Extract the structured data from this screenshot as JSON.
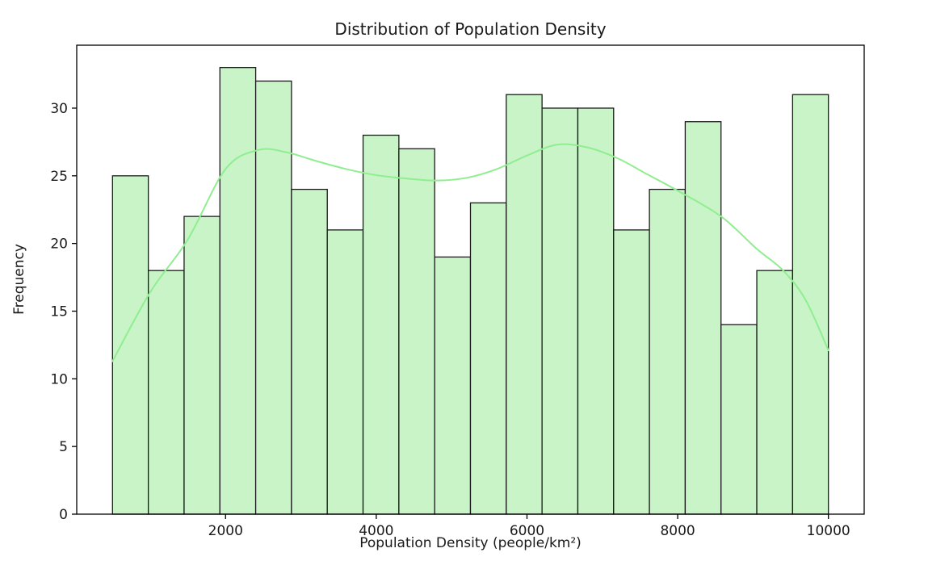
{
  "figure": {
    "background": "#ffffff"
  },
  "chart_data": {
    "type": "bar",
    "subtype": "histogram",
    "title": "Distribution of Population Density",
    "xlabel": "Population Density (people/km²)",
    "ylabel": "Frequency",
    "bin_edges": [
      500,
      975,
      1450,
      1925,
      2400,
      2875,
      3350,
      3825,
      4300,
      4775,
      5250,
      5725,
      6200,
      6675,
      7150,
      7625,
      8100,
      8575,
      9050,
      9525,
      10000
    ],
    "values": [
      25,
      18,
      22,
      33,
      32,
      24,
      21,
      28,
      27,
      19,
      23,
      31,
      30,
      30,
      21,
      24,
      29,
      14,
      18,
      31
    ],
    "total_count": 500,
    "xlim": [
      25,
      10475
    ],
    "ylim": [
      0,
      34.65
    ],
    "xticks": [
      2000,
      4000,
      6000,
      8000,
      10000
    ],
    "yticks": [
      0,
      5,
      10,
      15,
      20,
      25,
      30
    ],
    "grid": false,
    "legend": null,
    "colors": {
      "bar_fill": "#c8f4c8",
      "bar_edge": "#1a1a1a",
      "kde_line": "#90ee90",
      "spine": "#000000",
      "text": "#1a1a1a"
    },
    "kde_curve": {
      "x": [
        500,
        1000,
        1500,
        2000,
        2430,
        2800,
        3200,
        3600,
        4000,
        4400,
        4800,
        5200,
        5600,
        6000,
        6400,
        6800,
        7200,
        7600,
        8000,
        8575,
        9050,
        9400,
        9700,
        10000
      ],
      "y": [
        11.3,
        16.4,
        20.3,
        25.5,
        26.9,
        26.75,
        26.1,
        25.5,
        25.05,
        24.8,
        24.65,
        24.85,
        25.5,
        26.5,
        27.3,
        27.1,
        26.3,
        25.1,
        23.9,
        22.0,
        19.6,
        18.0,
        15.8,
        12.1
      ]
    }
  }
}
